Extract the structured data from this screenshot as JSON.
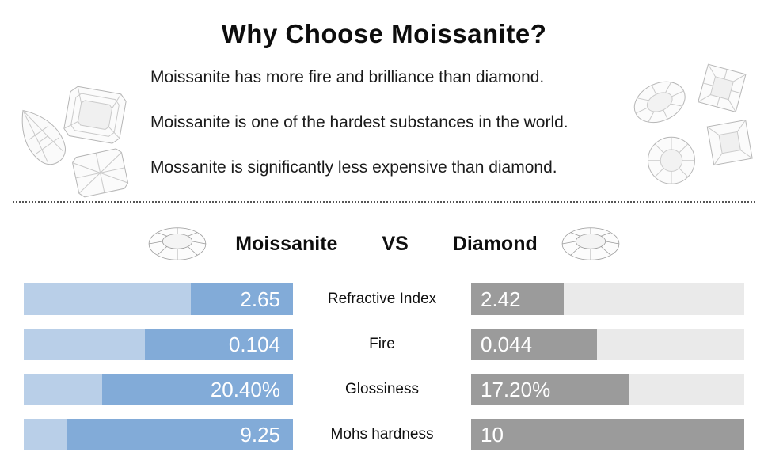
{
  "page": {
    "title": "Why Choose Moissanite?",
    "bullets": [
      "Moissanite has more fire and brilliance than diamond.",
      "Moissanite is one of the hardest substances in the world.",
      "Mossanite is significantly less expensive than diamond."
    ]
  },
  "comparison": {
    "left_label": "Moissanite",
    "vs_label": "VS",
    "right_label": "Diamond",
    "colors": {
      "moissanite_fill": "#82abd8",
      "moissanite_track": "#b9cfe8",
      "diamond_fill": "#9b9b9b",
      "diamond_track": "#eaeaea"
    },
    "icons": {
      "left": "round-brilliant-gem-icon",
      "right": "round-brilliant-gem-icon"
    },
    "rows": [
      {
        "metric": "Refractive Index",
        "moissanite": "2.65",
        "diamond": "2.42",
        "m_light_pct": 62,
        "d_fill_pct": 34
      },
      {
        "metric": "Fire",
        "moissanite": "0.104",
        "diamond": "0.044",
        "m_light_pct": 45,
        "d_fill_pct": 46
      },
      {
        "metric": "Glossiness",
        "moissanite": "20.40%",
        "diamond": "17.20%",
        "m_light_pct": 29,
        "d_fill_pct": 58
      },
      {
        "metric": "Mohs hardness",
        "moissanite": "9.25",
        "diamond": "10",
        "m_light_pct": 16,
        "d_fill_pct": 100
      }
    ]
  },
  "chart_data": {
    "type": "bar",
    "title": "Moissanite VS Diamond",
    "categories": [
      "Refractive Index",
      "Fire",
      "Glossiness",
      "Mohs hardness"
    ],
    "series": [
      {
        "name": "Moissanite",
        "values": [
          2.65,
          0.104,
          20.4,
          9.25
        ]
      },
      {
        "name": "Diamond",
        "values": [
          2.42,
          0.044,
          17.2,
          10
        ]
      }
    ],
    "value_labels": {
      "Moissanite": [
        "2.65",
        "0.104",
        "20.40%",
        "9.25"
      ],
      "Diamond": [
        "2.42",
        "0.044",
        "17.20%",
        "10"
      ]
    },
    "legend_position": "top",
    "grid": false
  }
}
